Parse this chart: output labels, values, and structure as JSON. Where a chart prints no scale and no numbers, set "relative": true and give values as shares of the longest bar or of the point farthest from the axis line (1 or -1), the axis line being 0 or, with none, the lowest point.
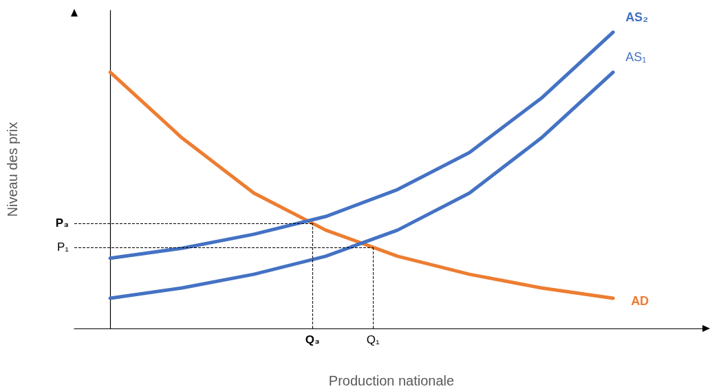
{
  "chart_data": {
    "type": "line",
    "relative": true,
    "xlabel": "Production nationale",
    "ylabel": "Niveau des prix",
    "categories": [
      null,
      null,
      null,
      null,
      null,
      null,
      null,
      null
    ],
    "series": [
      {
        "name": "AD",
        "color": "#ed7d31",
        "values": [
          0.865,
          0.643,
          0.457,
          0.332,
          0.244,
          0.183,
          0.137,
          0.102
        ]
      },
      {
        "name": "AS₂",
        "color": "#4472c4",
        "values": [
          0.237,
          0.271,
          0.318,
          0.378,
          0.469,
          0.594,
          0.777,
          1
        ]
      },
      {
        "name": "AS₁",
        "color": "#4472c4",
        "values": [
          0.102,
          0.137,
          0.183,
          0.244,
          0.332,
          0.457,
          0.643,
          0.865
        ]
      }
    ],
    "ref_lines": [
      {
        "axis": "y",
        "value": 0.355,
        "label": "P₃",
        "line_style": "dashed",
        "color": "#000000"
      },
      {
        "axis": "y",
        "value": 0.274,
        "label": "P₁",
        "line_style": "dashed",
        "color": "#000000"
      }
    ],
    "annotations": [
      "Q₃",
      "Q₁"
    ],
    "marker": "none",
    "line_style": "solid",
    "grid": false,
    "legend": false
  }
}
